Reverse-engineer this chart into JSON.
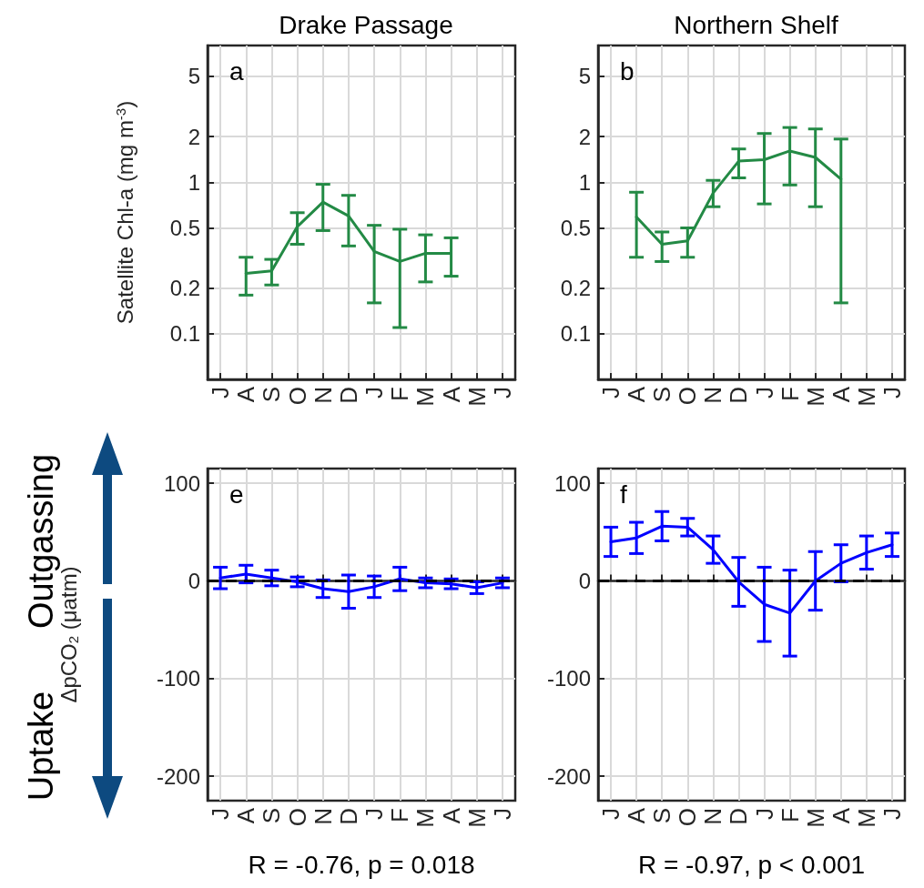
{
  "chart_data": [
    {
      "type": "line",
      "title": "Drake Passage",
      "ylabel": "Satellite Chl-a (mg m$^{-3}$)",
      "annotations": [
        "a"
      ],
      "categories": [
        "J",
        "A",
        "S",
        "O",
        "N",
        "D",
        "J",
        "F",
        "M",
        "A",
        "M",
        "J"
      ],
      "series": [
        {
          "color": "#238a45",
          "values": [
            null,
            0.25,
            0.26,
            0.51,
            0.74,
            0.6,
            0.35,
            0.3,
            0.34,
            0.34,
            null,
            null
          ],
          "errors": [
            null,
            [
              0.18,
              0.32
            ],
            [
              0.21,
              0.31
            ],
            [
              0.39,
              0.63
            ],
            [
              0.48,
              0.97
            ],
            [
              0.38,
              0.82
            ],
            [
              0.16,
              0.52
            ],
            [
              0.11,
              0.49
            ],
            [
              0.22,
              0.45
            ],
            [
              0.24,
              0.43
            ],
            null,
            null
          ]
        }
      ],
      "log": "y",
      "ylim": [
        0.05,
        8
      ],
      "yticks": [
        0.1,
        0.2,
        0.5,
        1,
        2,
        5
      ],
      "grid": true,
      "marker": "none",
      "line_style": "solid"
    },
    {
      "type": "line",
      "title": "Northern Shelf",
      "annotations": [
        "b"
      ],
      "categories": [
        "J",
        "A",
        "S",
        "O",
        "N",
        "D",
        "J",
        "F",
        "M",
        "A",
        "M",
        "J"
      ],
      "series": [
        {
          "color": "#238a45",
          "values": [
            null,
            0.59,
            0.39,
            0.41,
            0.85,
            1.38,
            1.41,
            1.61,
            1.46,
            1.05,
            null,
            null
          ],
          "errors": [
            null,
            [
              0.32,
              0.86
            ],
            [
              0.3,
              0.47
            ],
            [
              0.32,
              0.5
            ],
            [
              0.69,
              1.03
            ],
            [
              1.07,
              1.66
            ],
            [
              0.72,
              2.1
            ],
            [
              0.96,
              2.3
            ],
            [
              0.69,
              2.25
            ],
            [
              0.16,
              1.93
            ],
            null,
            null
          ]
        }
      ],
      "log": "y",
      "ylim": [
        0.05,
        8
      ],
      "yticks": [
        0.1,
        0.2,
        0.5,
        1,
        2,
        5
      ],
      "grid": true,
      "marker": "none",
      "line_style": "solid"
    },
    {
      "type": "line",
      "ylabel": "ΔpCO$_{2}$ (μatm)",
      "annotations": [
        "e",
        "Outgassing",
        "Uptake",
        "R = -0.76, p = 0.018"
      ],
      "categories": [
        "J",
        "A",
        "S",
        "O",
        "N",
        "D",
        "J",
        "F",
        "M",
        "A",
        "M",
        "J"
      ],
      "series": [
        {
          "color": "#0000ff",
          "values": [
            3,
            7,
            3,
            -1,
            -8,
            -11,
            -6,
            2,
            -2,
            -3,
            -7,
            -2
          ],
          "errors": [
            11,
            9,
            8,
            5,
            9,
            17,
            11,
            12,
            5,
            5,
            6,
            5
          ]
        }
      ],
      "ylim": [
        -225,
        115
      ],
      "yticks": [
        -200,
        -100,
        0,
        100
      ],
      "grid": true,
      "marker": "none",
      "line_style": "solid",
      "ref_lines": [
        {
          "axis": "y",
          "value": 0,
          "color": "#000000",
          "line_style": "dashed"
        }
      ]
    },
    {
      "type": "line",
      "annotations": [
        "f",
        "R = -0.97, p < 0.001"
      ],
      "categories": [
        "J",
        "A",
        "S",
        "O",
        "N",
        "D",
        "J",
        "F",
        "M",
        "A",
        "M",
        "J"
      ],
      "series": [
        {
          "color": "#0000ff",
          "values": [
            40,
            44,
            56,
            55,
            32,
            -1,
            -24,
            -33,
            0,
            18,
            29,
            37
          ],
          "errors": [
            15,
            16,
            15,
            9,
            14,
            25,
            38,
            44,
            30,
            19,
            17,
            12
          ]
        }
      ],
      "ylim": [
        -225,
        115
      ],
      "yticks": [
        -200,
        -100,
        0,
        100
      ],
      "grid": true,
      "marker": "none",
      "line_style": "solid",
      "ref_lines": [
        {
          "axis": "y",
          "value": 0,
          "color": "#000000",
          "line_style": "dashed"
        }
      ]
    }
  ]
}
